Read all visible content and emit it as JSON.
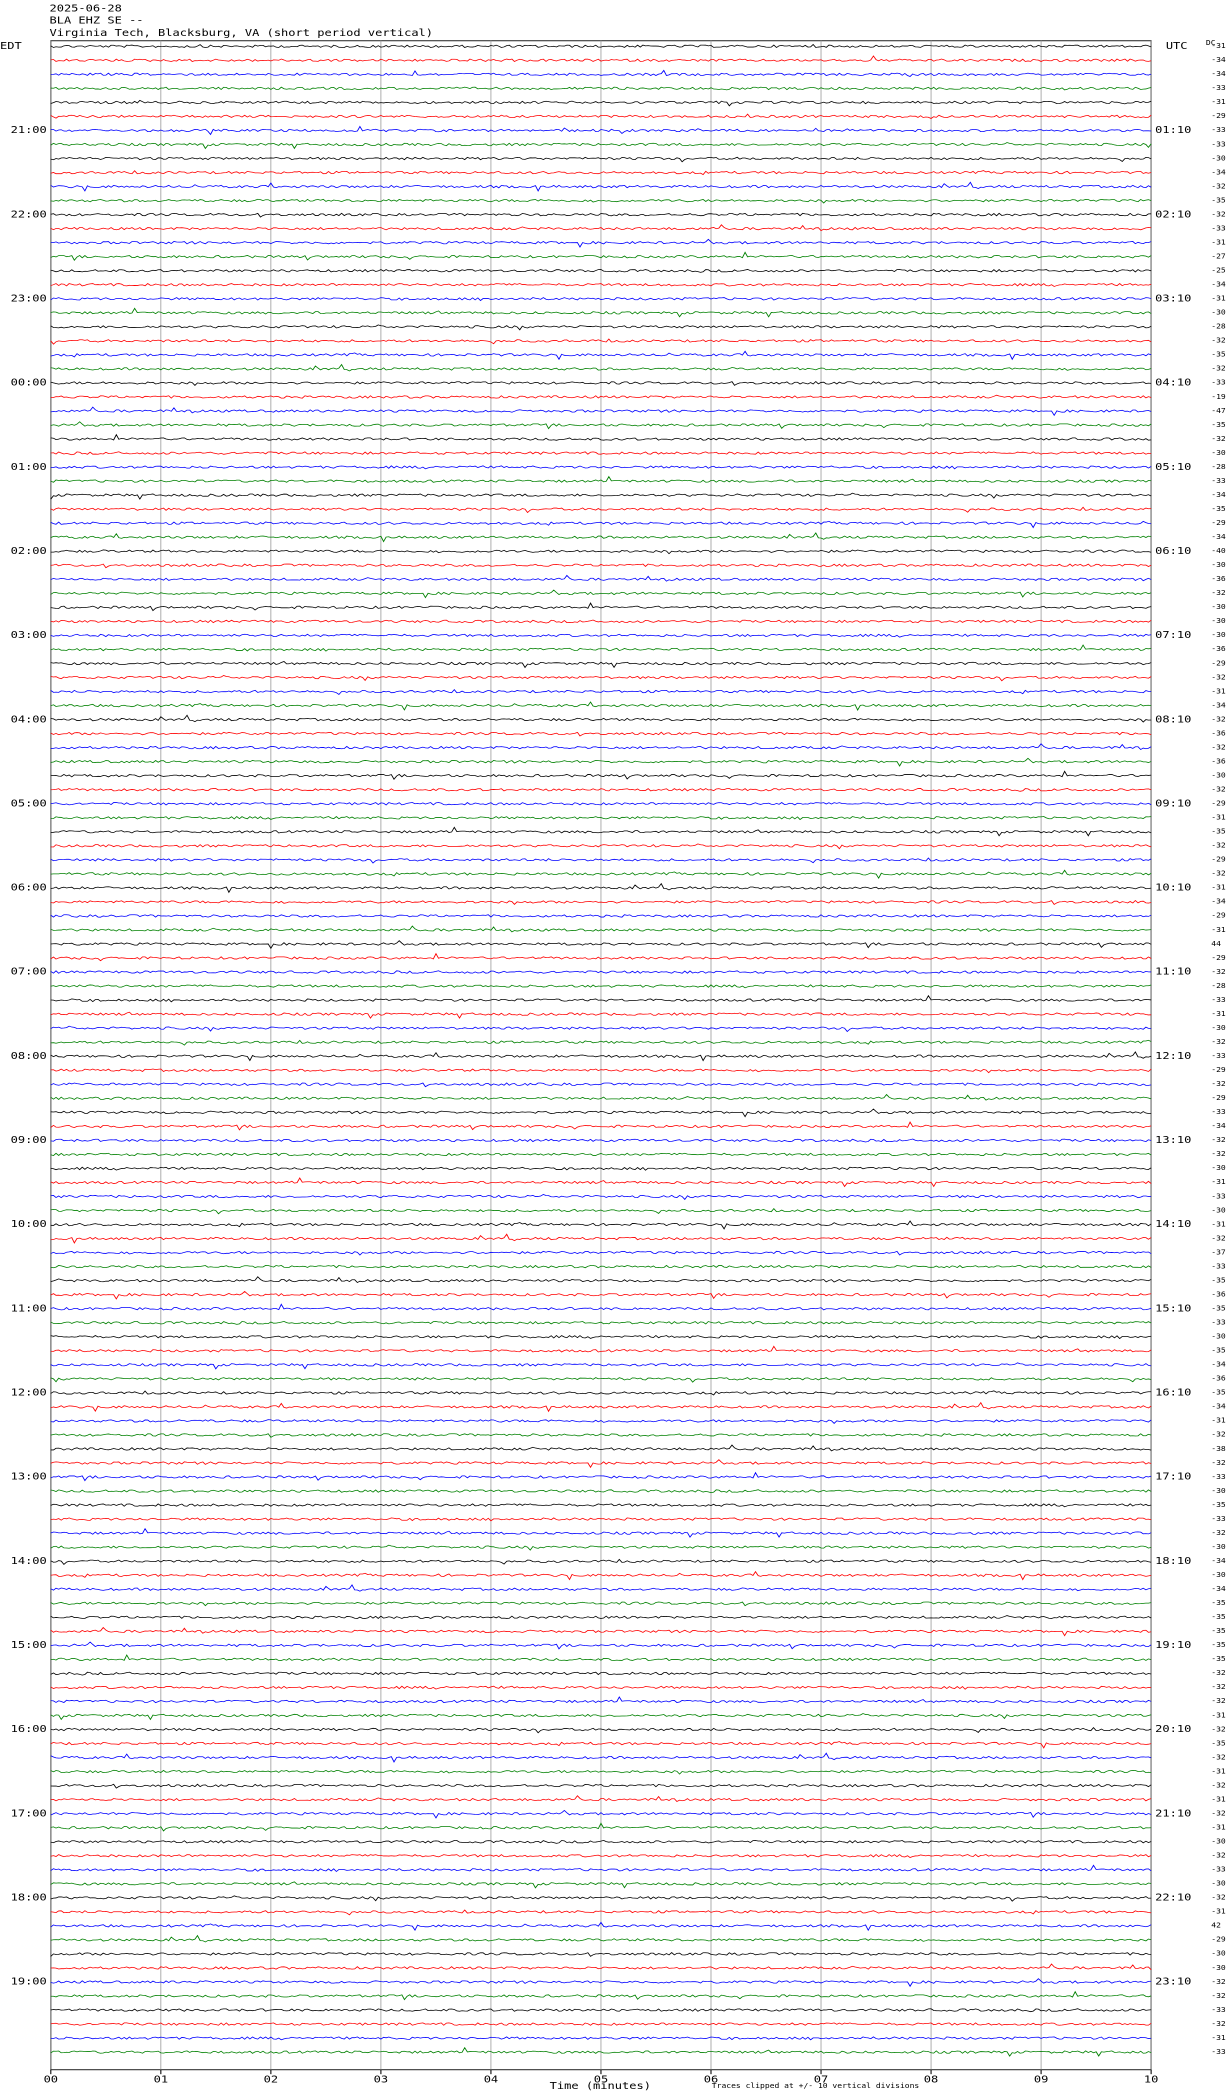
{
  "header": {
    "date": "2025-06-28",
    "station": "BLA EHZ SE --",
    "location": "Virginia Tech, Blacksburg, VA (short period vertical)"
  },
  "chart_data": {
    "type": "helicorder",
    "left_zone": "EDT",
    "right_zone": "UTC",
    "dc_label": "DC",
    "left_hours": [
      "21:00",
      "22:00",
      "23:00",
      "00:00",
      "01:00",
      "02:00",
      "03:00",
      "04:00",
      "05:00",
      "06:00",
      "07:00",
      "08:00",
      "09:00",
      "10:00",
      "11:00",
      "12:00",
      "13:00",
      "14:00",
      "15:00",
      "16:00",
      "17:00",
      "18:00",
      "19:00"
    ],
    "right_hours": [
      "01:10",
      "02:10",
      "03:10",
      "04:10",
      "05:10",
      "06:10",
      "07:10",
      "08:10",
      "09:10",
      "10:10",
      "11:10",
      "12:10",
      "13:10",
      "14:10",
      "15:10",
      "16:10",
      "17:10",
      "18:10",
      "19:10",
      "20:10",
      "21:10",
      "22:10",
      "23:10"
    ],
    "dc_offsets": [
      -31,
      -34,
      -34,
      -33,
      -31,
      -29,
      -33,
      -33,
      -30,
      -34,
      -32,
      -35,
      -32,
      -33,
      -31,
      -27,
      -25,
      -34,
      -31,
      -30,
      -28,
      -32,
      -35,
      -32,
      -33,
      -19,
      -47,
      -35,
      -32,
      -30,
      -28,
      -33,
      -34,
      -35,
      -29,
      -34,
      -40,
      -30,
      -36,
      -32,
      -30,
      -30,
      -30,
      -36,
      -29,
      -32,
      -31,
      -34,
      -32,
      -36,
      -32,
      -36,
      -30,
      -32,
      -29,
      -31,
      -35,
      -32,
      -29,
      -32,
      -31,
      -34,
      -29,
      -31,
      44,
      -29,
      -32,
      -28,
      -33,
      -31,
      -30,
      -32,
      -33,
      -29,
      -32,
      -29,
      -33,
      -34,
      -32,
      -32,
      -30,
      -31,
      -33,
      -30,
      -31,
      -32,
      -37,
      -33,
      -35,
      -36,
      -35,
      -33,
      -30,
      -35,
      -34,
      -36,
      -35,
      -34,
      -31,
      -32,
      -38,
      -32,
      -33,
      -30,
      -35,
      -33,
      -32,
      -30,
      -34,
      -30,
      -34,
      -35,
      -35,
      -35,
      -35,
      -35,
      -32,
      -32,
      -32,
      -31,
      -32,
      -35,
      -32,
      -31,
      -32,
      -31,
      -32,
      -31,
      -30,
      -32,
      -33,
      -30,
      -32,
      -31,
      42,
      -29,
      -30,
      -30,
      -32,
      -32,
      -33,
      -32,
      -31,
      -33
    ],
    "trace_colors": [
      "#000000",
      "#ff0000",
      "#0000ff",
      "#008000"
    ],
    "xlim": [
      0,
      10
    ],
    "xticks": [
      {
        "value": 0,
        "label": "00"
      },
      {
        "value": 1,
        "label": "01"
      },
      {
        "value": 2,
        "label": "02"
      },
      {
        "value": 3,
        "label": "03"
      },
      {
        "value": 4,
        "label": "04"
      },
      {
        "value": 5,
        "label": "05"
      },
      {
        "value": 6,
        "label": "06"
      },
      {
        "value": 7,
        "label": "07"
      },
      {
        "value": 8,
        "label": "08"
      },
      {
        "value": 9,
        "label": "09"
      },
      {
        "value": 10,
        "label": "10"
      }
    ],
    "x_label": "Time (minutes)",
    "note": "Traces clipped at +/- 10 vertical divisions"
  }
}
